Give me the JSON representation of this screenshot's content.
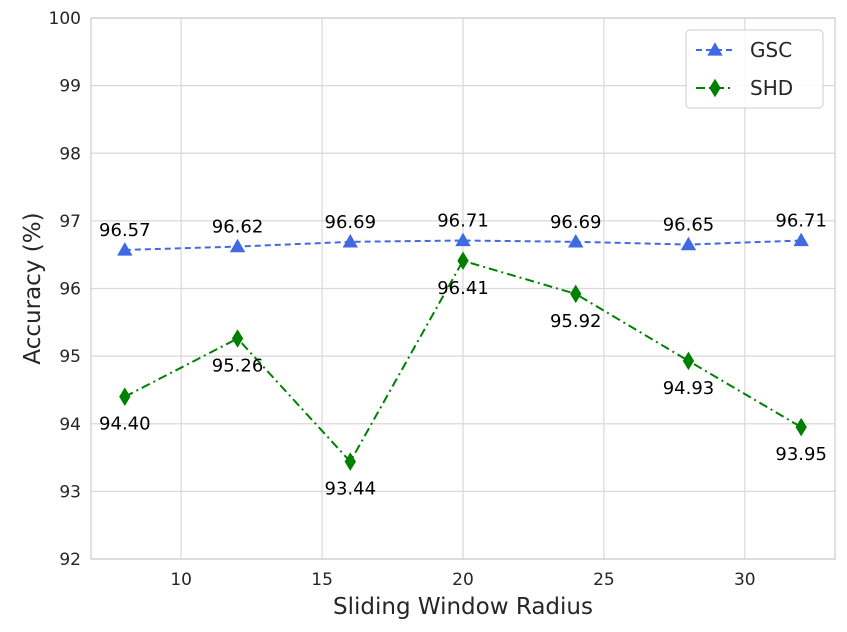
{
  "chart_data": {
    "type": "line",
    "xlabel": "Sliding Window Radius",
    "ylabel": "Accuracy (%)",
    "x": [
      8,
      12,
      16,
      20,
      24,
      28,
      32
    ],
    "xlim": [
      6.8,
      33.2
    ],
    "ylim": [
      92,
      100
    ],
    "xticks": [
      10,
      15,
      20,
      25,
      30
    ],
    "yticks": [
      92,
      93,
      94,
      95,
      96,
      97,
      98,
      99,
      100
    ],
    "grid": true,
    "legend_position": "top-right",
    "series": [
      {
        "name": "GSC",
        "values": [
          96.57,
          96.62,
          96.69,
          96.71,
          96.69,
          96.65,
          96.71
        ],
        "labels": [
          "96.57",
          "96.62",
          "96.69",
          "96.71",
          "96.69",
          "96.65",
          "96.71"
        ],
        "color": "#4169E1",
        "marker": "triangle",
        "linestyle": "dashed",
        "label_positions": [
          "above",
          "above",
          "above",
          "above",
          "above",
          "above",
          "above"
        ]
      },
      {
        "name": "SHD",
        "values": [
          94.4,
          95.26,
          93.44,
          96.41,
          95.92,
          94.93,
          93.95
        ],
        "labels": [
          "94.40",
          "95.26",
          "93.44",
          "96.41",
          "95.92",
          "94.93",
          "93.95"
        ],
        "color": "#008000",
        "marker": "diamond",
        "linestyle": "dashdot",
        "label_positions": [
          "below",
          "below",
          "below",
          "below",
          "below",
          "below",
          "below"
        ]
      }
    ]
  }
}
